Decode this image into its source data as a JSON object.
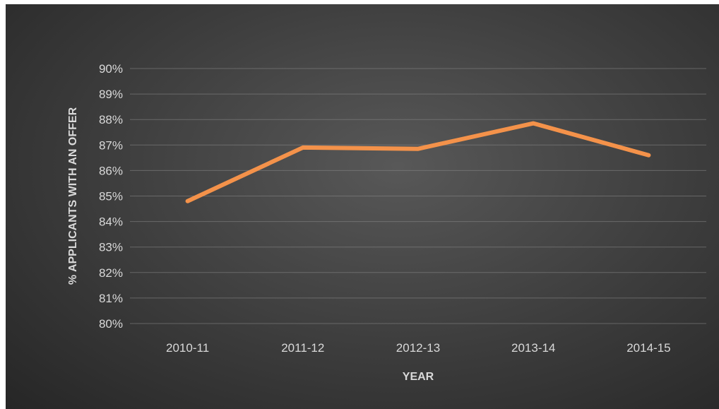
{
  "chart_data": {
    "type": "line",
    "categories": [
      "2010-11",
      "2011-12",
      "2012-13",
      "2013-14",
      "2014-15"
    ],
    "series": [
      {
        "values": [
          84.8,
          86.9,
          86.85,
          87.85,
          86.6
        ],
        "color": "#f4924a"
      }
    ],
    "title": "",
    "xlabel": "YEAR",
    "ylabel": "% APPLICANTS WITH AN OFFER",
    "ylim": [
      80,
      90
    ],
    "yticks": [
      "80%",
      "81%",
      "82%",
      "83%",
      "84%",
      "85%",
      "86%",
      "87%",
      "88%",
      "89%",
      "90%"
    ],
    "grid": true,
    "legend": "none",
    "background_color": "#3a3a3a",
    "text_color": "#d9d9d9"
  }
}
